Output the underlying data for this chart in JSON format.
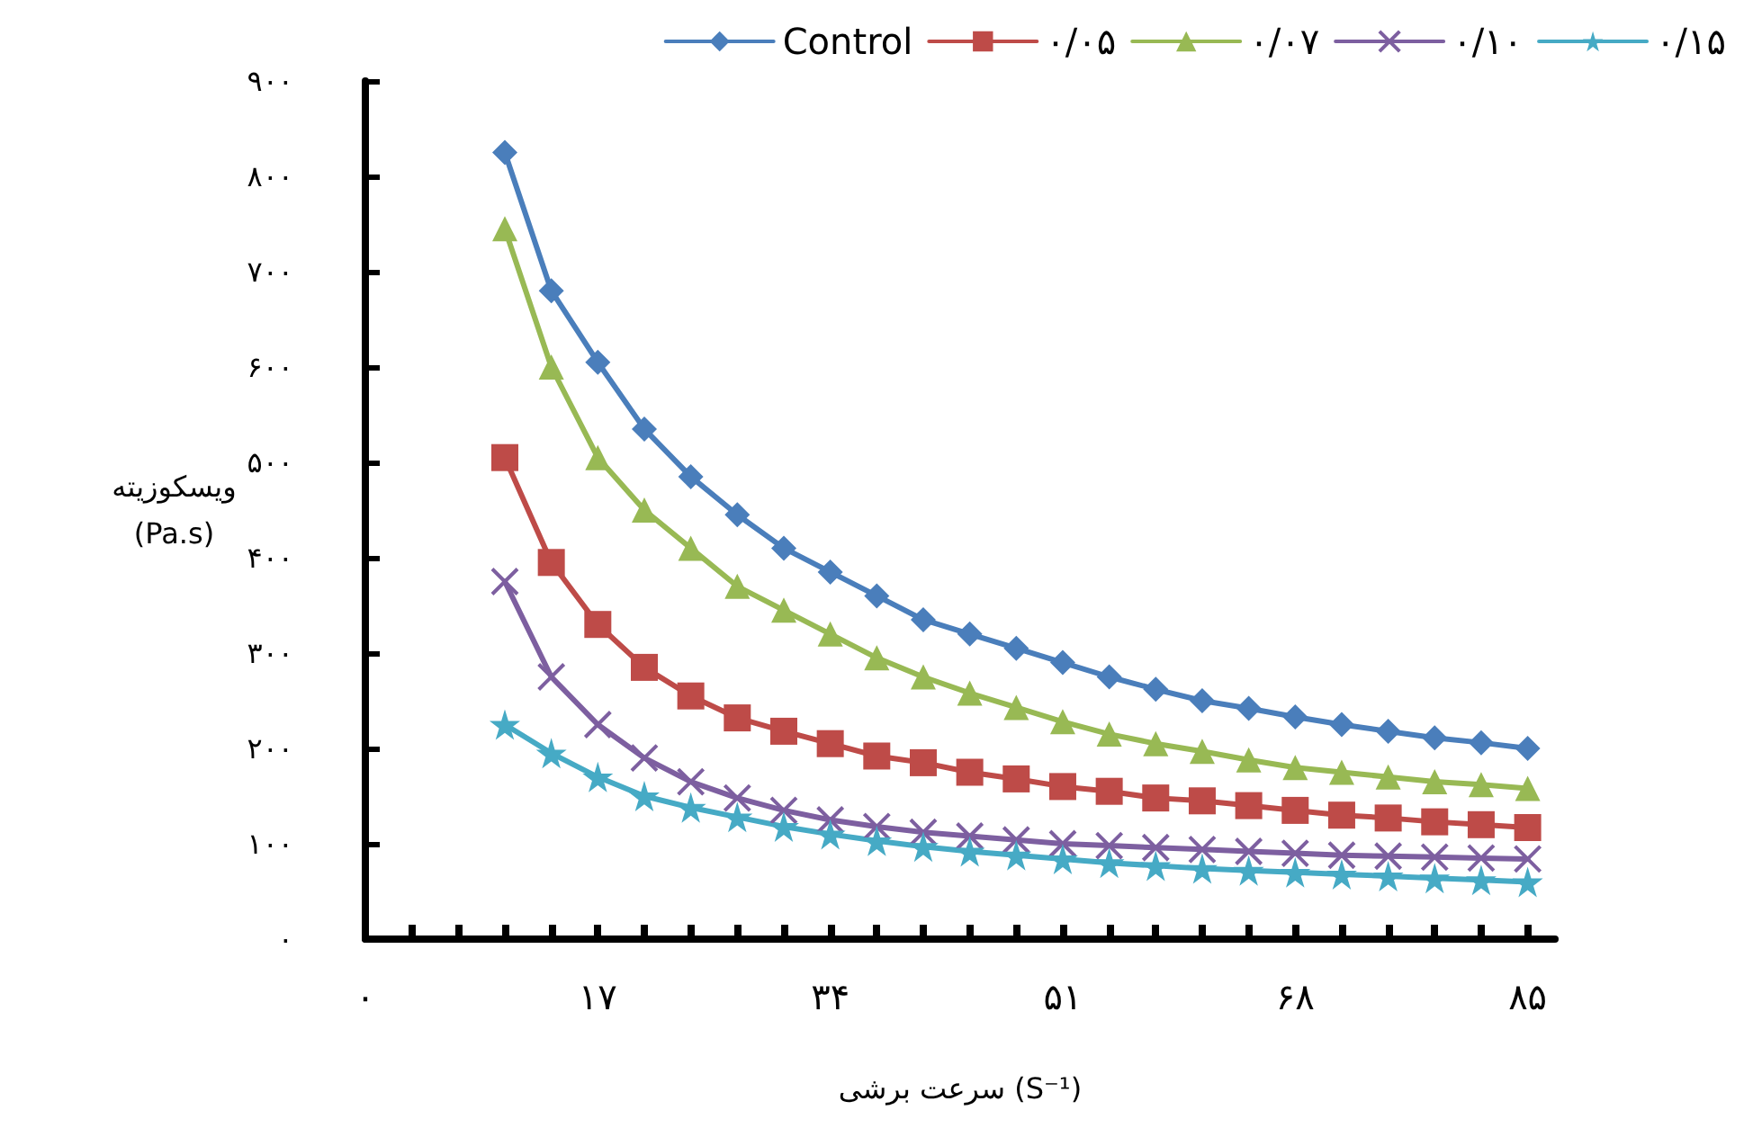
{
  "chart_data": {
    "type": "line",
    "xlabel": "سرعت برشی (S⁻¹)",
    "ylabel": "ویسکوزیته (Pa.s)",
    "x": [
      10.2,
      13.6,
      17,
      20.4,
      23.8,
      27.2,
      30.6,
      34,
      37.4,
      40.8,
      44.2,
      47.6,
      51,
      54.4,
      57.8,
      61.2,
      64.6,
      68,
      71.4,
      74.8,
      78.2,
      81.6,
      85
    ],
    "series": [
      {
        "name": "Control",
        "color": "#4a7ebb",
        "marker": "diamond",
        "values": [
          825,
          680,
          605,
          535,
          485,
          445,
          410,
          385,
          360,
          335,
          320,
          305,
          290,
          275,
          262,
          250,
          242,
          233,
          225,
          218,
          211,
          206,
          200
        ]
      },
      {
        "name": "۰/۰۵",
        "color": "#be4b48",
        "marker": "square",
        "values": [
          505,
          395,
          330,
          285,
          255,
          232,
          218,
          205,
          192,
          185,
          175,
          168,
          160,
          155,
          148,
          145,
          140,
          135,
          130,
          127,
          123,
          120,
          117
        ]
      },
      {
        "name": "۰/۰۷",
        "color": "#98b954",
        "marker": "triangle",
        "values": [
          745,
          600,
          505,
          450,
          410,
          370,
          345,
          320,
          295,
          275,
          258,
          243,
          228,
          215,
          205,
          197,
          188,
          180,
          175,
          170,
          165,
          162,
          158
        ]
      },
      {
        "name": "۰/۱۰",
        "color": "#7d5fa0",
        "marker": "cross",
        "values": [
          375,
          275,
          225,
          190,
          165,
          148,
          135,
          125,
          118,
          112,
          108,
          104,
          100,
          98,
          96,
          94,
          92,
          90,
          88,
          87,
          86,
          85,
          84
        ]
      },
      {
        "name": "۰/۱۵",
        "color": "#46aac5",
        "marker": "star",
        "values": [
          225,
          195,
          170,
          150,
          138,
          128,
          118,
          110,
          103,
          97,
          92,
          88,
          84,
          80,
          77,
          74,
          72,
          70,
          68,
          66,
          64,
          62,
          60
        ]
      }
    ],
    "xlim": [
      0,
      87
    ],
    "xticks": [
      {
        "value": 0,
        "label": "۰"
      },
      {
        "value": 3.4,
        "label": null
      },
      {
        "value": 6.8,
        "label": null
      },
      {
        "value": 10.2,
        "label": null
      },
      {
        "value": 13.6,
        "label": null
      },
      {
        "value": 17,
        "label": "۱۷"
      },
      {
        "value": 20.4,
        "label": null
      },
      {
        "value": 23.8,
        "label": null
      },
      {
        "value": 27.2,
        "label": null
      },
      {
        "value": 30.6,
        "label": null
      },
      {
        "value": 34,
        "label": "۳۴"
      },
      {
        "value": 37.4,
        "label": null
      },
      {
        "value": 40.8,
        "label": null
      },
      {
        "value": 44.2,
        "label": null
      },
      {
        "value": 47.6,
        "label": null
      },
      {
        "value": 51,
        "label": "۵۱"
      },
      {
        "value": 54.4,
        "label": null
      },
      {
        "value": 57.8,
        "label": null
      },
      {
        "value": 61.2,
        "label": null
      },
      {
        "value": 64.6,
        "label": null
      },
      {
        "value": 68,
        "label": "۶۸"
      },
      {
        "value": 71.4,
        "label": null
      },
      {
        "value": 74.8,
        "label": null
      },
      {
        "value": 78.2,
        "label": null
      },
      {
        "value": 81.6,
        "label": null
      },
      {
        "value": 85,
        "label": "۸۵"
      }
    ],
    "ylim": [
      0,
      900
    ],
    "yticks": [
      {
        "value": 0,
        "label": "۰"
      },
      {
        "value": 100,
        "label": "۱۰۰"
      },
      {
        "value": 200,
        "label": "۲۰۰"
      },
      {
        "value": 300,
        "label": "۳۰۰"
      },
      {
        "value": 400,
        "label": "۴۰۰"
      },
      {
        "value": 500,
        "label": "۵۰۰"
      },
      {
        "value": 600,
        "label": "۶۰۰"
      },
      {
        "value": 700,
        "label": "۷۰۰"
      },
      {
        "value": 800,
        "label": "۸۰۰"
      },
      {
        "value": 900,
        "label": "۹۰۰"
      }
    ],
    "grid": false,
    "legend": "top right",
    "line_style": "solid"
  }
}
